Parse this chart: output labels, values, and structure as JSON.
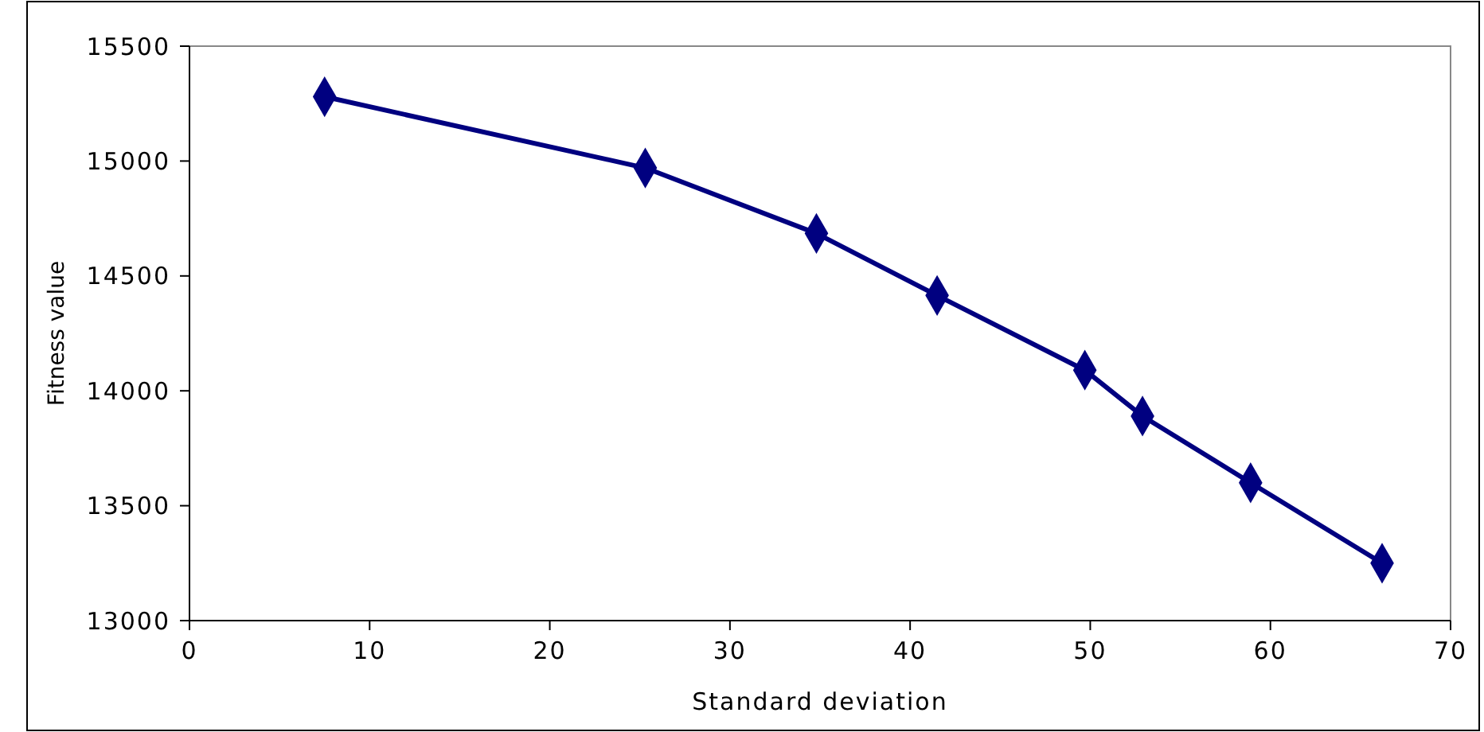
{
  "chart_data": {
    "type": "line",
    "xlabel": "Standard deviation",
    "ylabel": "Fitness value",
    "x": [
      7.5,
      25.3,
      34.8,
      41.5,
      49.7,
      52.9,
      58.9,
      66.2
    ],
    "series": [
      {
        "color": "#000080",
        "values": [
          15280,
          14970,
          14685,
          14415,
          14090,
          13890,
          13600,
          13250
        ]
      }
    ],
    "xlim": [
      0,
      70
    ],
    "xticks": [
      0,
      10,
      20,
      30,
      40,
      50,
      60,
      70
    ],
    "ylim": [
      13000,
      15500
    ],
    "yticks": [
      13000,
      13500,
      14000,
      14500,
      15000,
      15500
    ],
    "grid": false,
    "marker": "diamond",
    "line_style": "solid"
  }
}
